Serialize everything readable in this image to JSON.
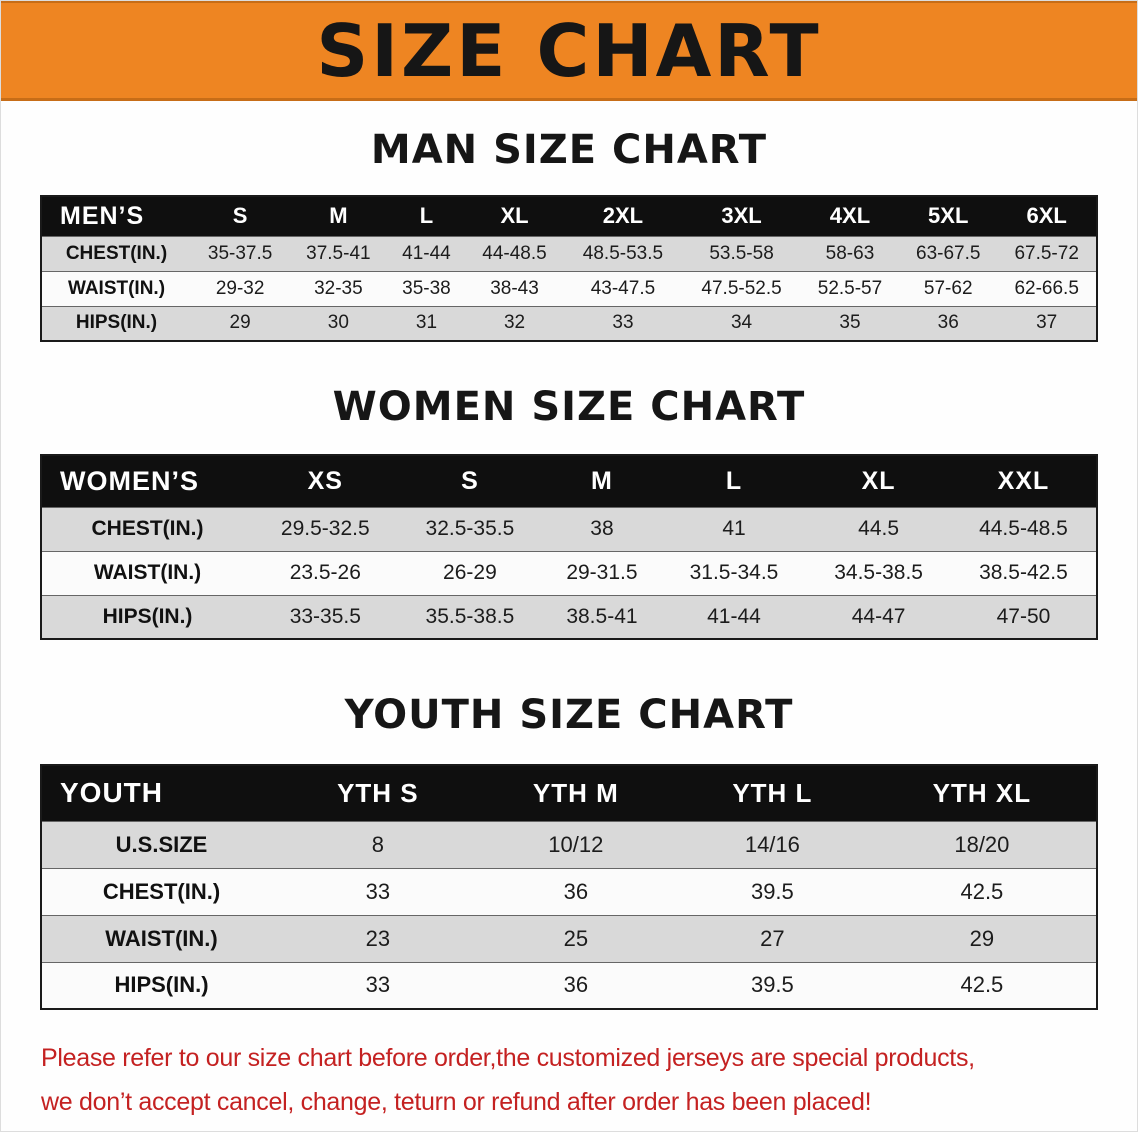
{
  "banner": {
    "title": "SIZE CHART"
  },
  "chart_data": [
    {
      "type": "table",
      "title": "MAN SIZE CHART",
      "header": [
        "MEN’S",
        "S",
        "M",
        "L",
        "XL",
        "2XL",
        "3XL",
        "4XL",
        "5XL",
        "6XL"
      ],
      "rows": [
        [
          "CHEST(IN.)",
          "35-37.5",
          "37.5-41",
          "41-44",
          "44-48.5",
          "48.5-53.5",
          "53.5-58",
          "58-63",
          "63-67.5",
          "67.5-72"
        ],
        [
          "WAIST(IN.)",
          "29-32",
          "32-35",
          "35-38",
          "38-43",
          "43-47.5",
          "47.5-52.5",
          "52.5-57",
          "57-62",
          "62-66.5"
        ],
        [
          "HIPS(IN.)",
          "29",
          "30",
          "31",
          "32",
          "33",
          "34",
          "35",
          "36",
          "37"
        ]
      ]
    },
    {
      "type": "table",
      "title": "WOMEN SIZE CHART",
      "header": [
        "WOMEN’S",
        "XS",
        "S",
        "M",
        "L",
        "XL",
        "XXL"
      ],
      "rows": [
        [
          "CHEST(IN.)",
          "29.5-32.5",
          "32.5-35.5",
          "38",
          "41",
          "44.5",
          "44.5-48.5"
        ],
        [
          "WAIST(IN.)",
          "23.5-26",
          "26-29",
          "29-31.5",
          "31.5-34.5",
          "34.5-38.5",
          "38.5-42.5"
        ],
        [
          "HIPS(IN.)",
          "33-35.5",
          "35.5-38.5",
          "38.5-41",
          "41-44",
          "44-47",
          "47-50"
        ]
      ]
    },
    {
      "type": "table",
      "title": "YOUTH SIZE CHART",
      "header": [
        "YOUTH",
        "YTH S",
        "YTH M",
        "YTH L",
        "YTH XL"
      ],
      "rows": [
        [
          "U.S.SIZE",
          "8",
          "10/12",
          "14/16",
          "18/20"
        ],
        [
          "CHEST(IN.)",
          "33",
          "36",
          "39.5",
          "42.5"
        ],
        [
          "WAIST(IN.)",
          "23",
          "25",
          "27",
          "29"
        ],
        [
          "HIPS(IN.)",
          "33",
          "36",
          "39.5",
          "42.5"
        ]
      ]
    }
  ],
  "notice": {
    "line1": "Please refer to our size chart before order,the customized jerseys are special products,",
    "line2": "we don’t accept cancel, change, teturn or refund after order has been placed!"
  },
  "colors": {
    "banner_orange": "#EE8522",
    "table_header_black": "#0F0F0F",
    "row_gray": "#D9D9D9",
    "notice_red": "#C42121",
    "title_black": "#161616"
  }
}
